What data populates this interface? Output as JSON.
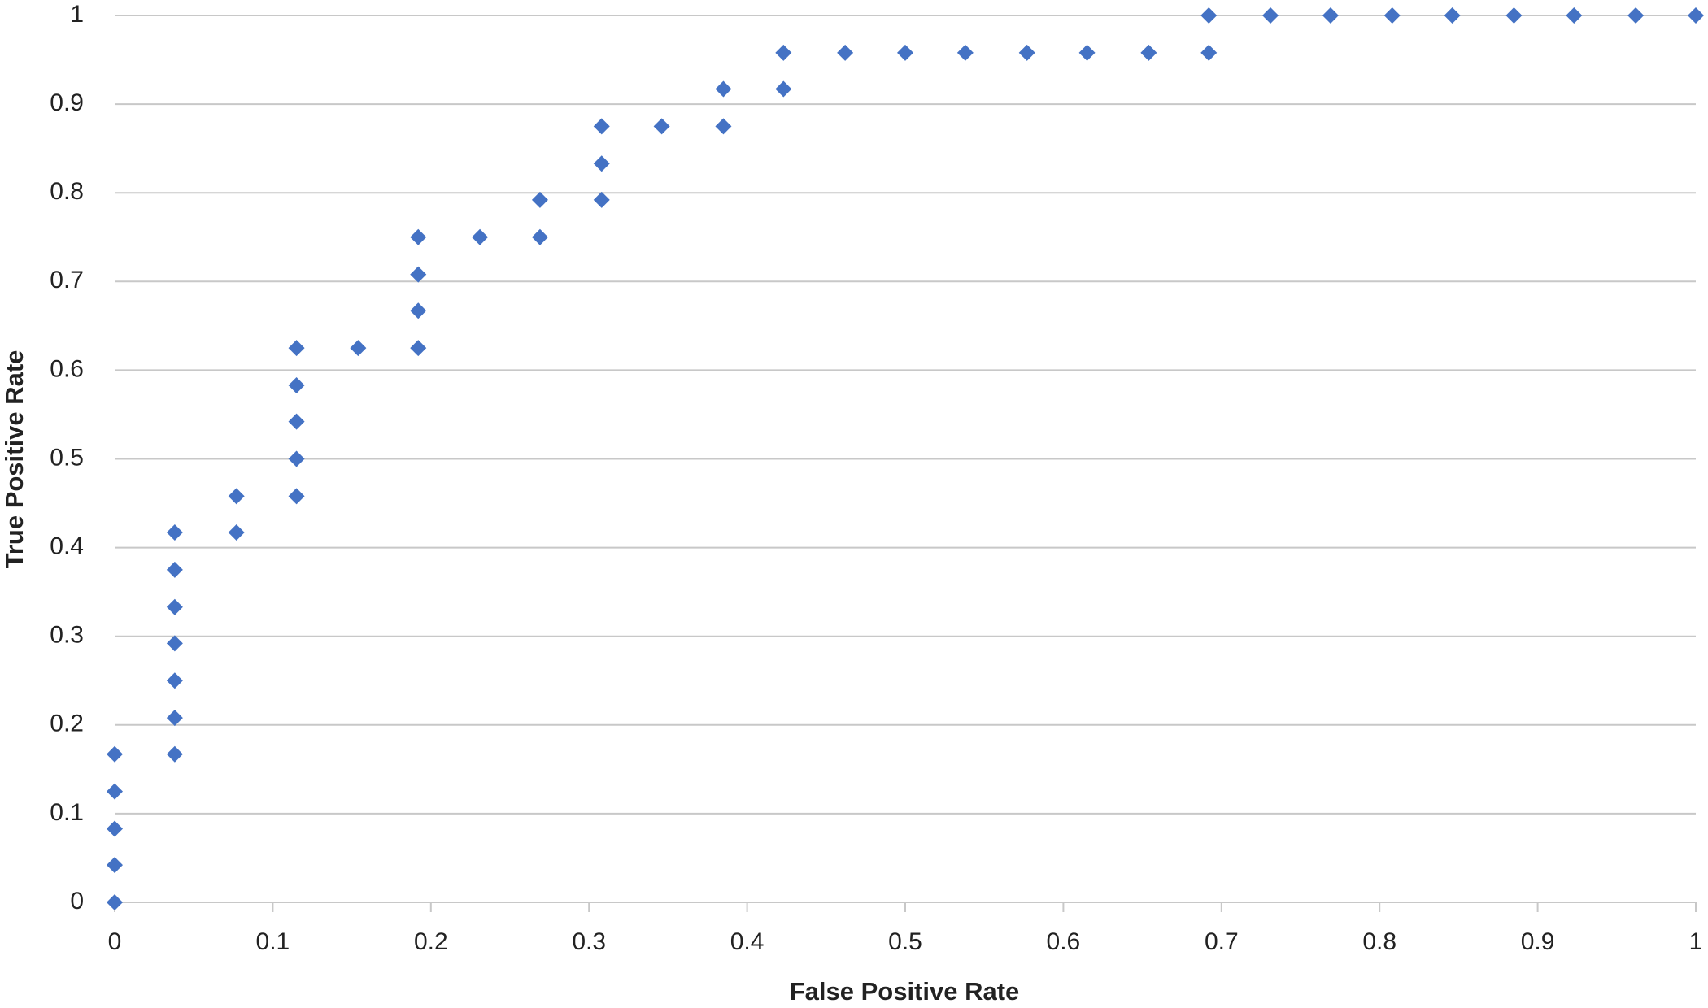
{
  "chart_data": {
    "type": "scatter",
    "x_label": "False Positive Rate",
    "y_label": "True Positive Rate",
    "x": [
      0,
      0,
      0,
      0,
      0,
      0.038,
      0.038,
      0.038,
      0.038,
      0.038,
      0.038,
      0.038,
      0.077,
      0.077,
      0.115,
      0.115,
      0.115,
      0.115,
      0.115,
      0.154,
      0.192,
      0.192,
      0.192,
      0.192,
      0.231,
      0.269,
      0.269,
      0.308,
      0.308,
      0.308,
      0.346,
      0.385,
      0.385,
      0.423,
      0.423,
      0.462,
      0.5,
      0.538,
      0.577,
      0.615,
      0.654,
      0.692,
      0.692,
      0.731,
      0.769,
      0.808,
      0.846,
      0.885,
      0.923,
      0.962,
      1
    ],
    "values": [
      0,
      0.042,
      0.083,
      0.125,
      0.167,
      0.167,
      0.208,
      0.25,
      0.292,
      0.333,
      0.375,
      0.417,
      0.417,
      0.458,
      0.458,
      0.5,
      0.542,
      0.583,
      0.625,
      0.625,
      0.625,
      0.667,
      0.708,
      0.75,
      0.75,
      0.75,
      0.792,
      0.792,
      0.833,
      0.875,
      0.875,
      0.875,
      0.917,
      0.917,
      0.958,
      0.958,
      0.958,
      0.958,
      0.958,
      0.958,
      0.958,
      0.958,
      1,
      1,
      1,
      1,
      1,
      1,
      1,
      1,
      1
    ],
    "color": "#4472c4",
    "xlim": [
      0,
      1
    ],
    "ylim": [
      0,
      1
    ],
    "xticks": [
      0,
      0.1,
      0.2,
      0.3,
      0.4,
      0.5,
      0.6,
      0.7,
      0.8,
      0.9,
      1
    ],
    "yticks": [
      0,
      0.1,
      0.2,
      0.3,
      0.4,
      0.5,
      0.6,
      0.7,
      0.8,
      0.9,
      1
    ],
    "grid": true
  }
}
